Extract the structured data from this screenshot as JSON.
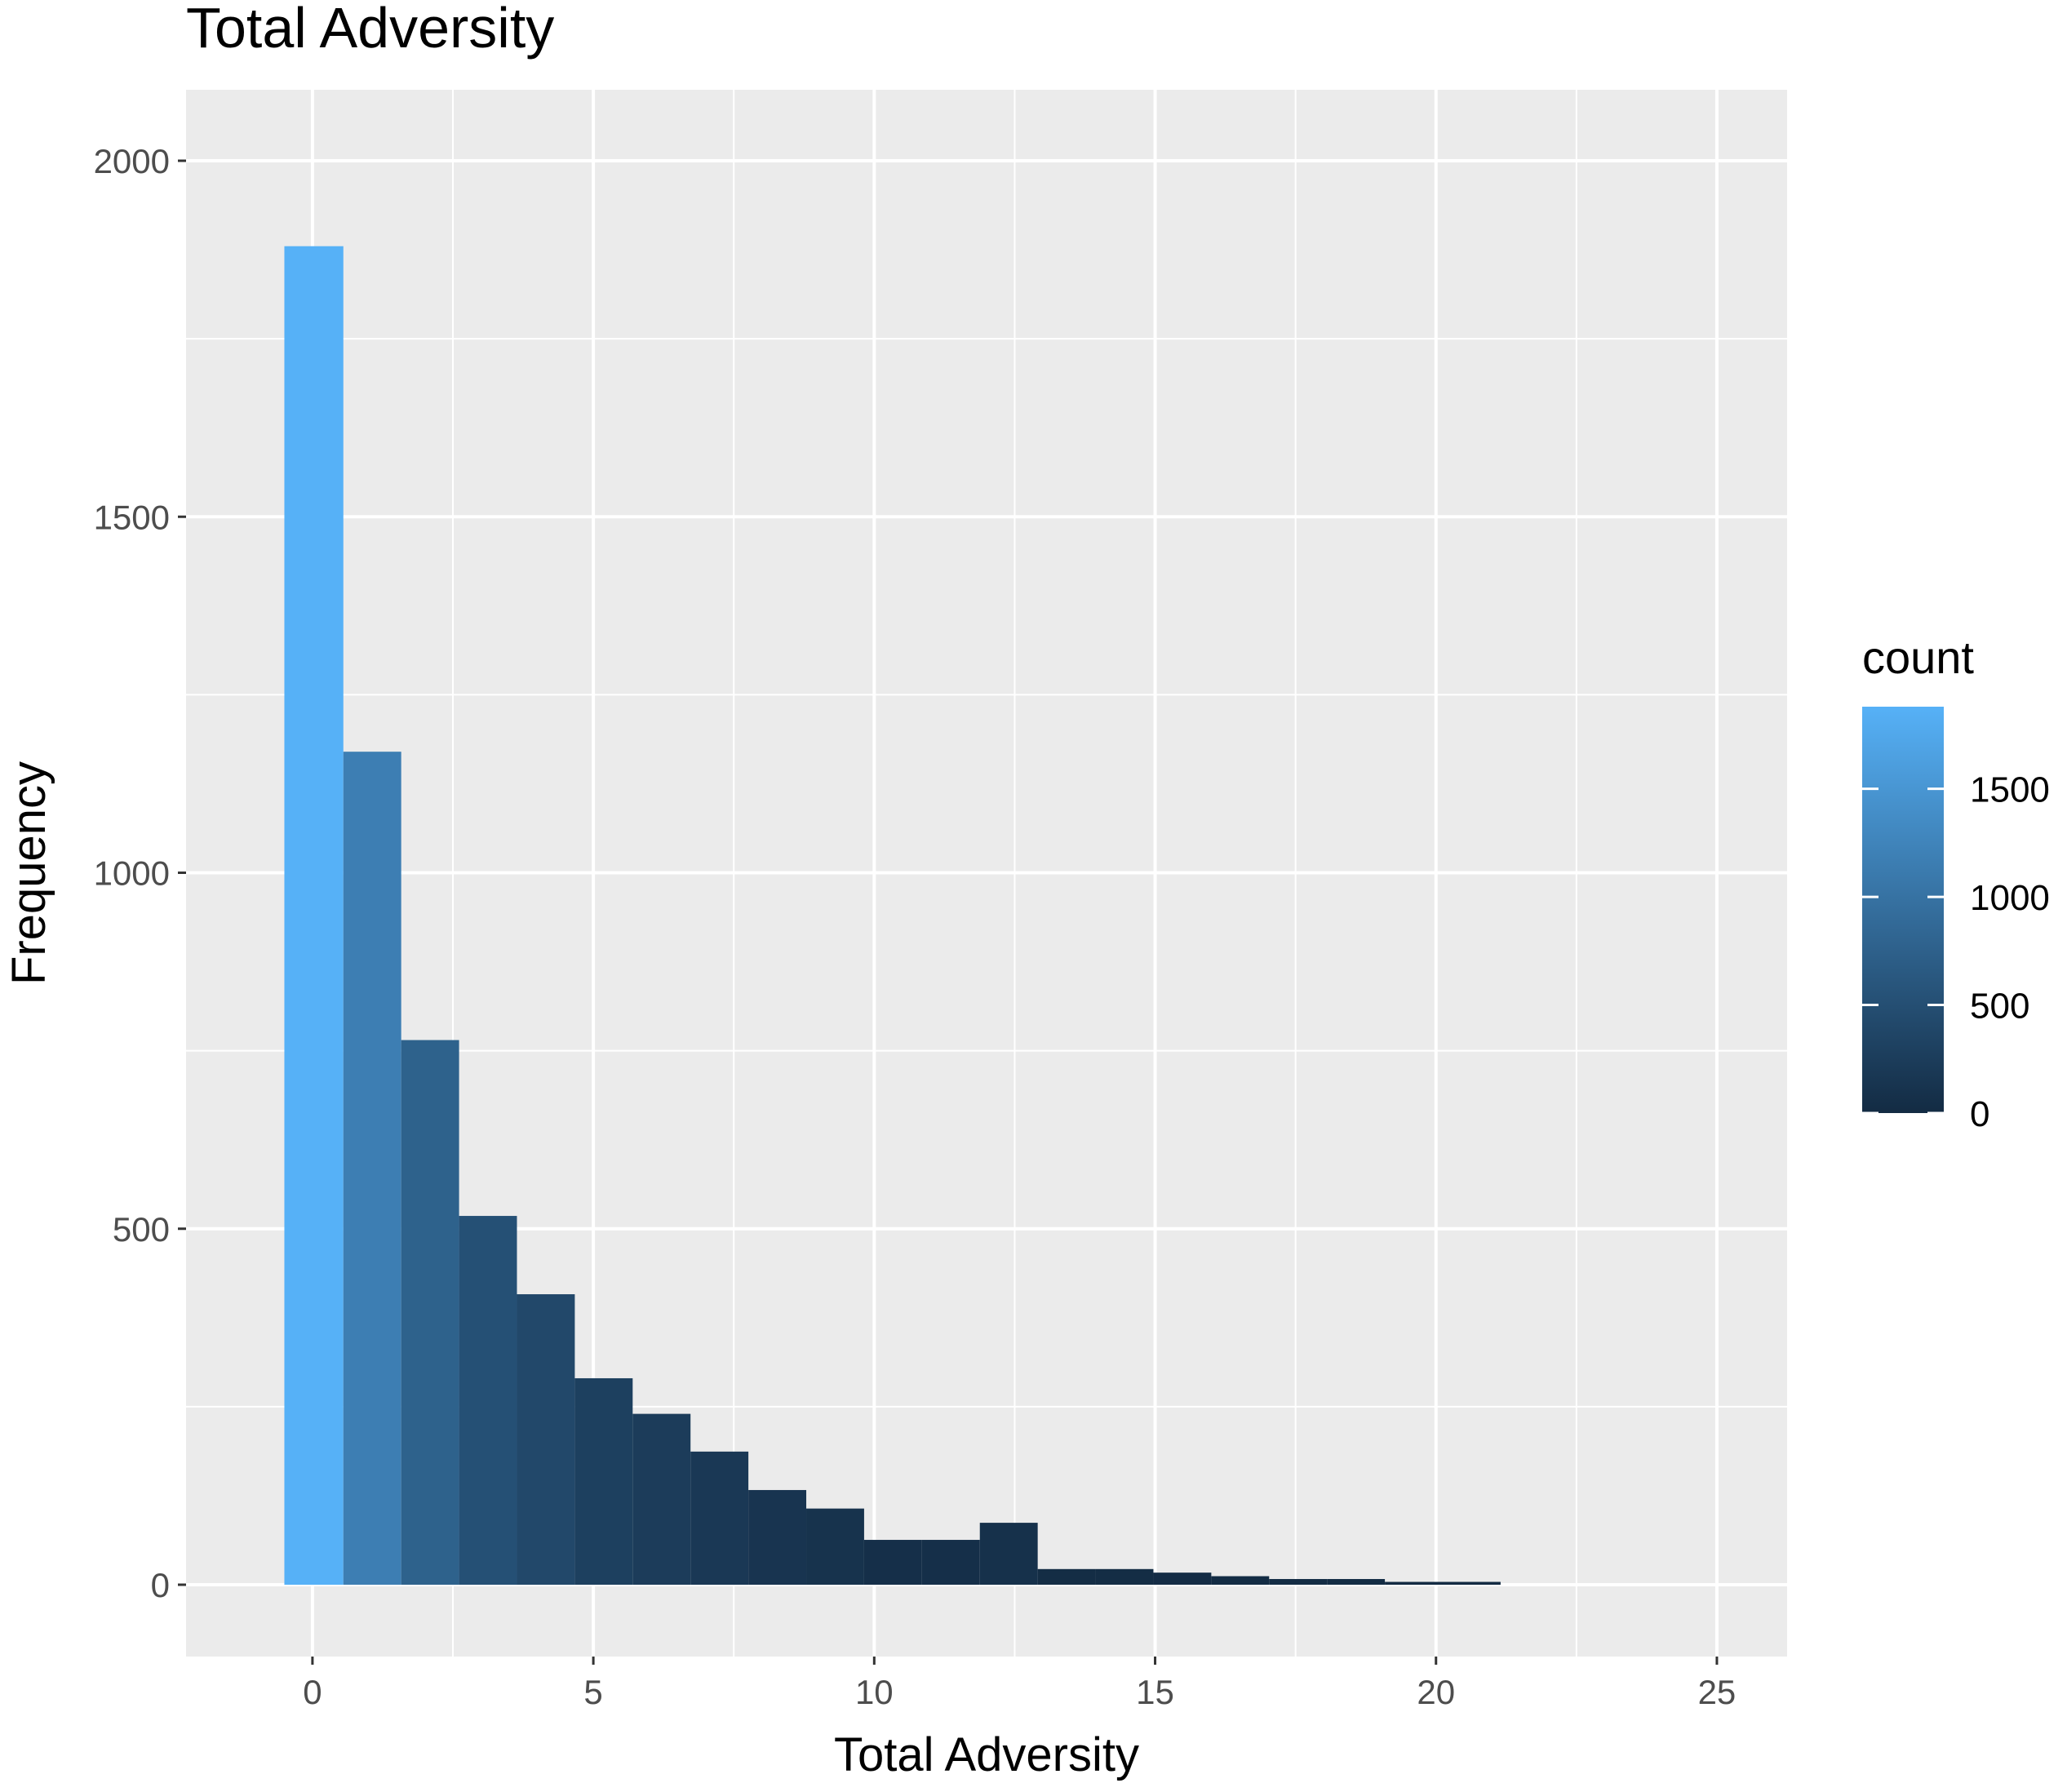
{
  "chart_data": {
    "type": "bar",
    "title": "Total Adversity",
    "xlabel": "Total Adversity",
    "ylabel": "Frequency",
    "xlim": [
      -2.25,
      26.25
    ],
    "ylim": [
      -95,
      2000
    ],
    "x_ticks": [
      0,
      5,
      10,
      15,
      20,
      25
    ],
    "y_ticks": [
      0,
      500,
      1000,
      1500,
      2000
    ],
    "bins": [
      {
        "x_min": -0.5,
        "x_max": 0.55,
        "count": 1880
      },
      {
        "x_min": 0.55,
        "x_max": 1.58,
        "count": 1170
      },
      {
        "x_min": 1.58,
        "x_max": 2.61,
        "count": 765
      },
      {
        "x_min": 2.61,
        "x_max": 3.64,
        "count": 518
      },
      {
        "x_min": 3.64,
        "x_max": 4.67,
        "count": 408
      },
      {
        "x_min": 4.67,
        "x_max": 5.7,
        "count": 290
      },
      {
        "x_min": 5.7,
        "x_max": 6.73,
        "count": 240
      },
      {
        "x_min": 6.73,
        "x_max": 7.76,
        "count": 187
      },
      {
        "x_min": 7.76,
        "x_max": 8.79,
        "count": 133
      },
      {
        "x_min": 8.79,
        "x_max": 9.82,
        "count": 107
      },
      {
        "x_min": 9.82,
        "x_max": 10.85,
        "count": 63
      },
      {
        "x_min": 10.85,
        "x_max": 11.88,
        "count": 63
      },
      {
        "x_min": 11.88,
        "x_max": 12.91,
        "count": 87
      },
      {
        "x_min": 12.91,
        "x_max": 13.94,
        "count": 22
      },
      {
        "x_min": 13.94,
        "x_max": 14.97,
        "count": 22
      },
      {
        "x_min": 14.97,
        "x_max": 16.0,
        "count": 17
      },
      {
        "x_min": 16.0,
        "x_max": 17.03,
        "count": 12
      },
      {
        "x_min": 17.03,
        "x_max": 18.06,
        "count": 8
      },
      {
        "x_min": 18.06,
        "x_max": 19.09,
        "count": 8
      },
      {
        "x_min": 19.09,
        "x_max": 20.12,
        "count": 4
      },
      {
        "x_min": 20.12,
        "x_max": 21.15,
        "count": 4
      }
    ],
    "grid": true,
    "legend": {
      "title": "count",
      "position": "right",
      "type": "colorbar",
      "min": 0,
      "max": 1880,
      "breaks": [
        0,
        500,
        1000,
        1500
      ],
      "color_low": "#132B43",
      "color_high": "#56B1F7"
    },
    "colors": {
      "panel_background": "#EBEBEB",
      "grid": "#FFFFFF",
      "tick_label": "#4D4D4D"
    }
  }
}
